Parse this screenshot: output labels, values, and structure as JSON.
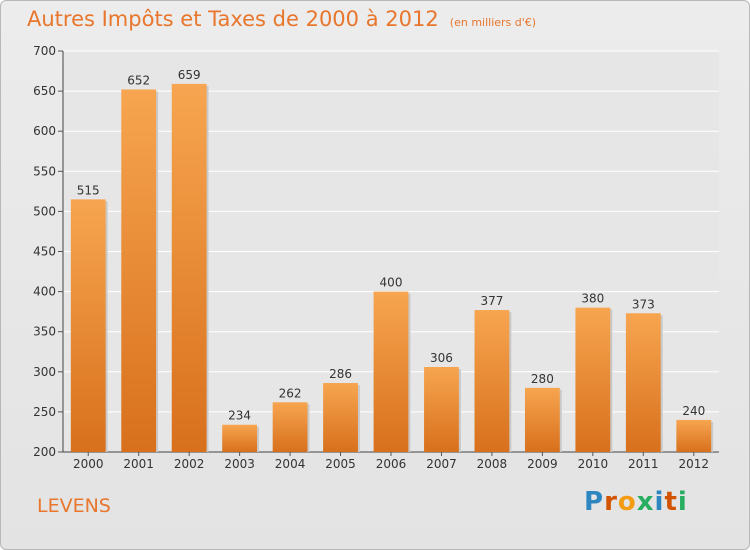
{
  "title": "Autres Impôts et Taxes de 2000 à 2012",
  "subtitle": "(en milliers d'€)",
  "commune": "LEVENS",
  "brand": {
    "letters": [
      "P",
      "r",
      "o",
      "x",
      "i",
      "t",
      "i"
    ],
    "colors": [
      "#2e86c1",
      "#d35400",
      "#f39c12",
      "#27ae60",
      "#2e86c1",
      "#d35400",
      "#27ae60"
    ]
  },
  "colors": {
    "bar_top": "#f7a550",
    "bar_bottom": "#d8701c",
    "text_accent": "#e8762c"
  },
  "chart_data": {
    "type": "bar",
    "categories": [
      "2000",
      "2001",
      "2002",
      "2003",
      "2004",
      "2005",
      "2006",
      "2007",
      "2008",
      "2009",
      "2010",
      "2011",
      "2012"
    ],
    "values": [
      515,
      652,
      659,
      234,
      262,
      286,
      400,
      306,
      377,
      280,
      380,
      373,
      240
    ],
    "ylim": [
      200,
      700
    ],
    "yticks": [
      200,
      250,
      300,
      350,
      400,
      450,
      500,
      550,
      600,
      650,
      700
    ],
    "grid": true,
    "data_labels": true
  }
}
